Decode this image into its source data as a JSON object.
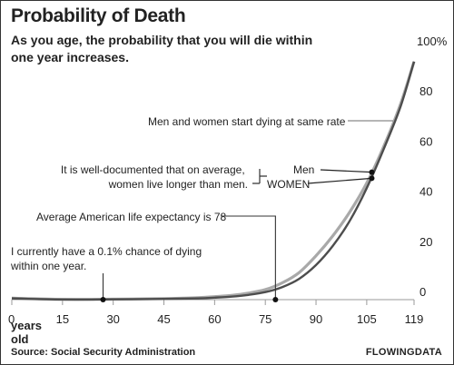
{
  "chart_data": {
    "type": "line",
    "title": "Probability of Death",
    "subtitle": "As you age, the probability that you will die within one year increases.",
    "xlabel": "years old",
    "ylabel": "",
    "xlim": [
      0,
      119
    ],
    "ylim": [
      0,
      100
    ],
    "x_ticks": [
      "0",
      "15",
      "30",
      "45",
      "60",
      "75",
      "90",
      "105",
      "119"
    ],
    "y_ticks": [
      "0",
      "20",
      "40",
      "60",
      "80",
      "100%"
    ],
    "series": [
      {
        "name": "Men",
        "color": "#a9a9a9",
        "x": [
          0,
          15,
          30,
          45,
          55,
          60,
          65,
          70,
          75,
          80,
          85,
          90,
          95,
          100,
          105,
          110,
          115,
          119
        ],
        "y": [
          0.6,
          0.1,
          0.2,
          0.4,
          0.8,
          1.2,
          1.7,
          2.6,
          4.0,
          6.7,
          10.8,
          17.5,
          25.5,
          35.0,
          46.5,
          61.0,
          78.0,
          95.0
        ]
      },
      {
        "name": "WOMEN",
        "color": "#4d4d4d",
        "x": [
          0,
          15,
          30,
          45,
          55,
          60,
          65,
          70,
          75,
          80,
          85,
          90,
          95,
          100,
          105,
          110,
          115,
          119
        ],
        "y": [
          0.5,
          0.05,
          0.1,
          0.3,
          0.5,
          0.8,
          1.2,
          1.9,
          3.0,
          5.0,
          8.3,
          13.8,
          21.5,
          31.5,
          44.5,
          60.0,
          77.0,
          95.0
        ]
      }
    ],
    "annotations": [
      {
        "lines": [
          "Men and women start dying at same rate"
        ]
      },
      {
        "lines": [
          "It is well-documented that on average,",
          "women live longer than men."
        ]
      },
      {
        "lines": [
          "Average American life expectancy is 78"
        ]
      },
      {
        "lines": [
          "I currently have a 0.1% chance of dying",
          "within one year."
        ]
      }
    ],
    "grid": false,
    "legend": "inline-labels"
  },
  "source": "Source: Social Security Administration",
  "brand": "FLOWINGDATA"
}
